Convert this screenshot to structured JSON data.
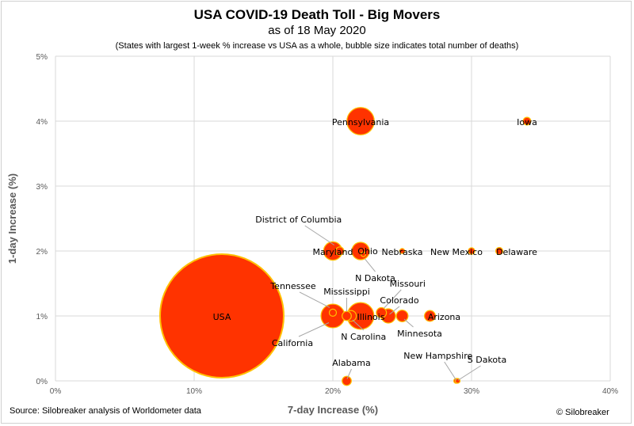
{
  "chart_data": {
    "type": "scatter",
    "title": "USA COVID-19 Death Toll - Big Movers",
    "subtitle": "as of 18 May 2020",
    "note": "(States with largest 1-week % increase vs USA as a whole, bubble size indicates total number of deaths)",
    "xlabel": "7-day Increase (%)",
    "ylabel": "1-day Increase (%)",
    "xlim": [
      0,
      40
    ],
    "ylim": [
      0,
      5
    ],
    "x_ticks": [
      "0%",
      "10%",
      "20%",
      "30%",
      "40%"
    ],
    "y_ticks": [
      "0%",
      "1%",
      "2%",
      "3%",
      "4%",
      "5%"
    ],
    "grid": true,
    "points": [
      {
        "label": "USA",
        "x": 12,
        "y": 1.0,
        "size": 90000
      },
      {
        "label": "Pennsylvania",
        "x": 22,
        "y": 4.0,
        "size": 4400
      },
      {
        "label": "Iowa",
        "x": 34,
        "y": 4.0,
        "size": 350
      },
      {
        "label": "Maryland",
        "x": 20,
        "y": 2.0,
        "size": 2000
      },
      {
        "label": "Ohio",
        "x": 22,
        "y": 2.0,
        "size": 1800
      },
      {
        "label": "District of Columbia",
        "x": 20.5,
        "y": 2.0,
        "size": 400
      },
      {
        "label": "N Dakota",
        "x": 22.2,
        "y": 1.95,
        "size": 50
      },
      {
        "label": "Nebraska",
        "x": 25,
        "y": 2.0,
        "size": 150
      },
      {
        "label": "New Mexico",
        "x": 30,
        "y": 2.0,
        "size": 250
      },
      {
        "label": "Delaware",
        "x": 32,
        "y": 2.0,
        "size": 300
      },
      {
        "label": "California",
        "x": 20,
        "y": 1.0,
        "size": 3300
      },
      {
        "label": "Tennessee",
        "x": 20,
        "y": 1.05,
        "size": 300
      },
      {
        "label": "Mississippi",
        "x": 21,
        "y": 1.0,
        "size": 500
      },
      {
        "label": "N Carolina",
        "x": 21.3,
        "y": 1.0,
        "size": 700
      },
      {
        "label": "Illinois",
        "x": 22,
        "y": 1.0,
        "size": 4200
      },
      {
        "label": "Missouri",
        "x": 23.5,
        "y": 1.05,
        "size": 600
      },
      {
        "label": "Colorado",
        "x": 24,
        "y": 1.0,
        "size": 1200
      },
      {
        "label": "Minnesota",
        "x": 25,
        "y": 1.0,
        "size": 800
      },
      {
        "label": "Arizona",
        "x": 27,
        "y": 1.0,
        "size": 700
      },
      {
        "label": "Alabama",
        "x": 21,
        "y": 0.0,
        "size": 500
      },
      {
        "label": "New Hampshire",
        "x": 28.9,
        "y": 0.0,
        "size": 150
      },
      {
        "label": "S Dakota",
        "x": 29,
        "y": 0.0,
        "size": 40
      }
    ],
    "colors": {
      "bubble_fill": "#ff3300",
      "bubble_edge": "#ffc000",
      "grid": "#d9d9d9",
      "axis_text": "#595959"
    }
  },
  "source": "Source: Silobreaker analysis of Worldometer data",
  "copyright": "© Silobreaker"
}
